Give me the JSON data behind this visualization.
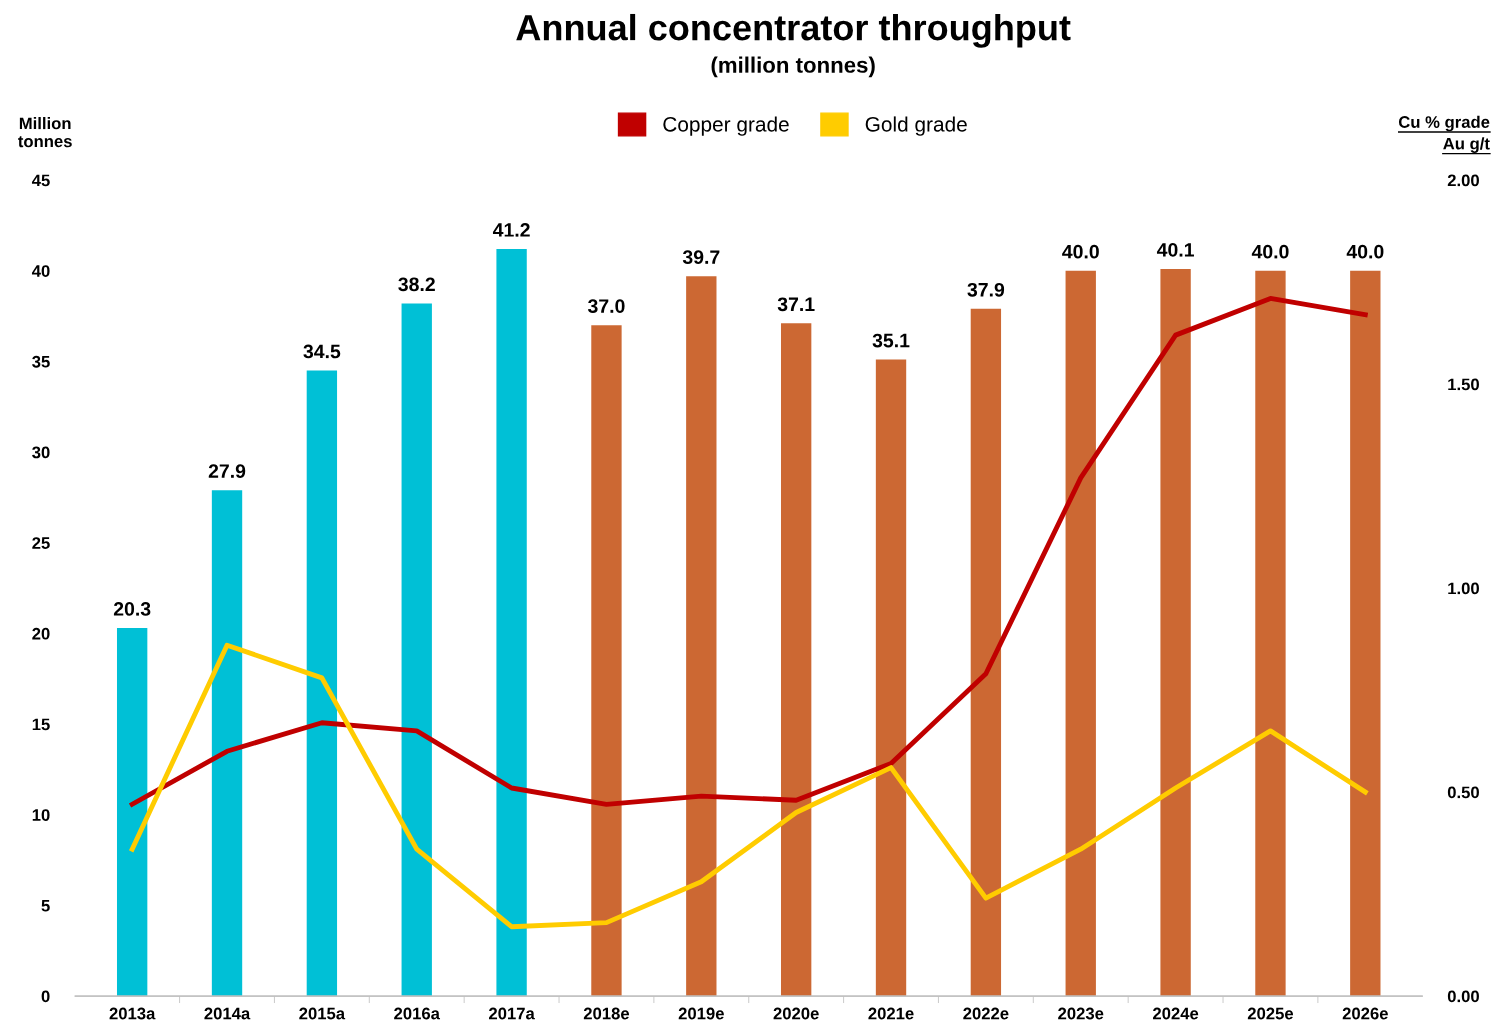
{
  "chart_data": {
    "type": "bar",
    "title": "Annual concentrator throughput",
    "subtitle": "(million tonnes)",
    "ylabel": "Million\ntonnes",
    "y2label": "Cu % grade\nAu g/t",
    "categories": [
      "2013a",
      "2014a",
      "2015a",
      "2016a",
      "2017a",
      "2018e",
      "2019e",
      "2020e",
      "2021e",
      "2022e",
      "2023e",
      "2024e",
      "2025e",
      "2026e"
    ],
    "series": [
      {
        "colors": [
          "#00c0d6",
          "#00c0d6",
          "#00c0d6",
          "#00c0d6",
          "#00c0d6",
          "#cc6833",
          "#cc6833",
          "#cc6833",
          "#cc6833",
          "#cc6833",
          "#cc6833",
          "#cc6833",
          "#cc6833",
          "#cc6833"
        ],
        "values": [
          20.3,
          27.9,
          34.5,
          38.2,
          41.2,
          37.0,
          39.7,
          37.1,
          35.1,
          37.9,
          40.0,
          40.1,
          40.0,
          40.0
        ],
        "value_labels": [
          "20.3",
          "27.9",
          "34.5",
          "38.2",
          "41.2",
          "37.0",
          "39.7",
          "37.1",
          "35.1",
          "37.9",
          "40.0",
          "40.1",
          "40.0",
          "40.0"
        ]
      },
      {
        "type": "line",
        "name": "Copper grade",
        "color": "#c00000",
        "axis": "y2",
        "values": [
          0.47,
          0.6,
          0.67,
          0.65,
          0.51,
          0.47,
          0.49,
          0.48,
          0.57,
          0.79,
          1.27,
          1.62,
          1.71,
          1.67
        ]
      },
      {
        "type": "line",
        "name": "Gold grade",
        "color": "#ffcc00",
        "axis": "y2",
        "values": [
          0.36,
          0.86,
          0.78,
          0.36,
          0.17,
          0.18,
          0.28,
          0.45,
          0.56,
          0.24,
          0.36,
          0.51,
          0.65,
          0.5
        ]
      }
    ],
    "ylim": [
      0,
      45
    ],
    "yticks": [
      0,
      5,
      10,
      15,
      20,
      25,
      30,
      35,
      40,
      45
    ],
    "y2lim": [
      0,
      2
    ],
    "y2ticks": [
      {
        "value": 0,
        "label": "0.00"
      },
      {
        "value": 0.5,
        "label": "0.50"
      },
      {
        "value": 1,
        "label": "1.00"
      },
      {
        "value": 1.5,
        "label": "1.50"
      },
      {
        "value": 2,
        "label": "2.00"
      }
    ],
    "grid": false,
    "legend": "top",
    "marker": "none",
    "line_style": "solid"
  }
}
